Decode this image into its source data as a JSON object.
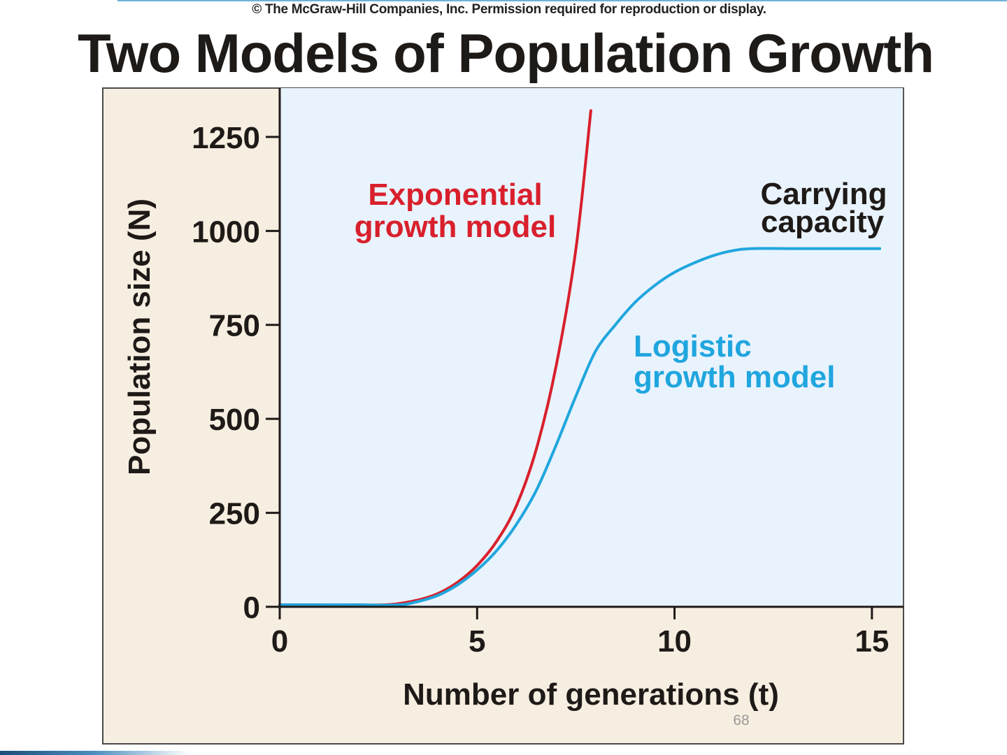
{
  "header": {
    "copyright": "© The McGraw-Hill Companies, Inc.  Permission required for reproduction or display.",
    "title": "Two Models of Population Growth"
  },
  "footer": {
    "page_number": "68"
  },
  "colors": {
    "frame_bg": "#f6eee0",
    "plot_bg": "#e9f3fd",
    "exponential": "#d8202c",
    "logistic": "#20a6de",
    "axis": "#1e1a18"
  },
  "chart_data": {
    "type": "line",
    "title": "Two Models of Population Growth",
    "xlabel": "Number of generations (t)",
    "ylabel": "Population size (N)",
    "xlim": [
      0,
      15.8
    ],
    "ylim": [
      0,
      1380
    ],
    "x_ticks": [
      0,
      5,
      10,
      15
    ],
    "x_tick_labels": [
      "0",
      "5",
      "10",
      "15"
    ],
    "y_ticks": [
      0,
      250,
      500,
      750,
      1000,
      1250
    ],
    "y_tick_labels": [
      "0",
      "250",
      "500",
      "750",
      "1000",
      "1250"
    ],
    "grid": false,
    "series": [
      {
        "name": "Exponential growth model",
        "label_lines": [
          "Exponential",
          "growth model"
        ],
        "color": "#d8202c",
        "points": [
          [
            0,
            5
          ],
          [
            1,
            5
          ],
          [
            2,
            5
          ],
          [
            2.8,
            6
          ],
          [
            3.5,
            18
          ],
          [
            4,
            35
          ],
          [
            4.5,
            65
          ],
          [
            5,
            110
          ],
          [
            5.5,
            175
          ],
          [
            6,
            270
          ],
          [
            6.5,
            420
          ],
          [
            7,
            640
          ],
          [
            7.5,
            950
          ],
          [
            7.88,
            1320
          ]
        ]
      },
      {
        "name": "Logistic growth model",
        "label_lines": [
          "Logistic",
          "growth model"
        ],
        "color": "#20a6de",
        "points": [
          [
            0,
            5
          ],
          [
            1,
            5
          ],
          [
            2,
            5
          ],
          [
            3,
            5
          ],
          [
            3.5,
            14
          ],
          [
            4,
            30
          ],
          [
            4.5,
            58
          ],
          [
            5,
            98
          ],
          [
            5.5,
            150
          ],
          [
            6,
            220
          ],
          [
            6.5,
            310
          ],
          [
            7,
            430
          ],
          [
            7.5,
            560
          ],
          [
            8,
            680
          ],
          [
            8.5,
            750
          ],
          [
            9,
            810
          ],
          [
            9.5,
            855
          ],
          [
            10,
            890
          ],
          [
            10.5,
            915
          ],
          [
            11,
            935
          ],
          [
            11.5,
            948
          ],
          [
            12,
            953
          ],
          [
            13,
            953
          ],
          [
            14,
            953
          ],
          [
            15,
            953
          ],
          [
            15.2,
            953
          ]
        ]
      }
    ],
    "annotations": [
      {
        "label_lines": [
          "Carrying",
          "capacity"
        ],
        "value": 953
      }
    ]
  }
}
